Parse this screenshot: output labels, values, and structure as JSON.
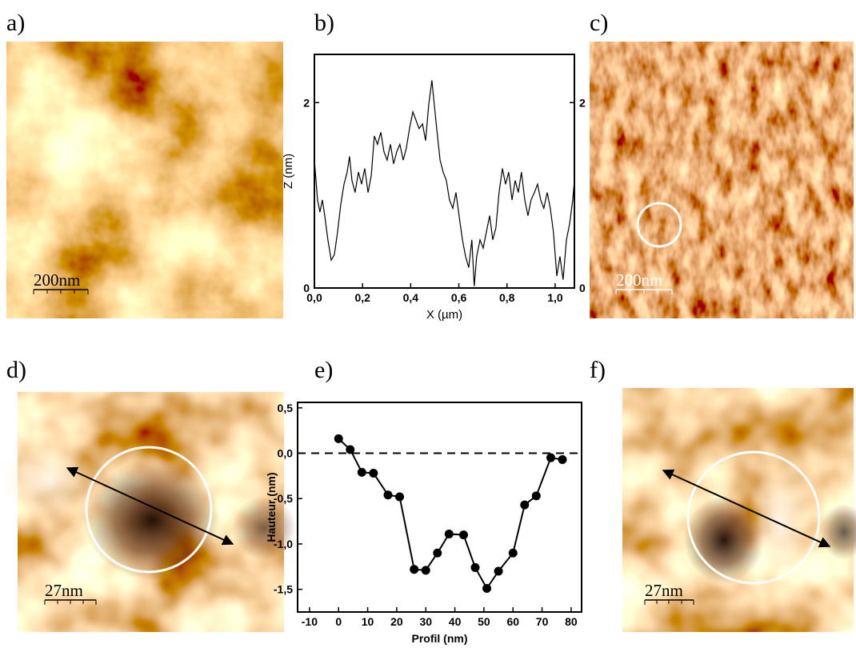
{
  "panels": [
    "a)",
    "b)",
    "c)",
    "d)",
    "e)",
    "f)"
  ],
  "scale_bars": {
    "a": "200nm",
    "c": "200nm",
    "d": "27nm",
    "f": "27nm"
  },
  "chart_data": [
    {
      "type": "line",
      "x_label": "X (µm)",
      "y_label": "Z (nm)",
      "xlim": [
        0,
        1.08
      ],
      "ylim": [
        0,
        2.52
      ],
      "y2lim": [
        0,
        2.52
      ],
      "xticks": [
        {
          "value": 0,
          "label": "0,0"
        },
        {
          "value": 0.2,
          "label": "0,2"
        },
        {
          "value": 0.4,
          "label": "0,4"
        },
        {
          "value": 0.6,
          "label": "0,6"
        },
        {
          "value": 0.8,
          "label": "0,8"
        },
        {
          "value": 1.0,
          "label": "1,0"
        }
      ],
      "yticks": [
        0,
        2
      ],
      "y2ticks": [
        0,
        2
      ],
      "x": [
        0,
        0.013,
        0.023,
        0.033,
        0.043,
        0.056,
        0.07,
        0.083,
        0.096,
        0.11,
        0.123,
        0.136,
        0.146,
        0.156,
        0.169,
        0.183,
        0.196,
        0.209,
        0.223,
        0.236,
        0.249,
        0.262,
        0.276,
        0.289,
        0.302,
        0.316,
        0.329,
        0.342,
        0.355,
        0.369,
        0.382,
        0.395,
        0.409,
        0.422,
        0.435,
        0.449,
        0.462,
        0.475,
        0.488,
        0.498,
        0.508,
        0.522,
        0.535,
        0.548,
        0.561,
        0.575,
        0.588,
        0.601,
        0.615,
        0.628,
        0.641,
        0.654,
        0.664,
        0.674,
        0.688,
        0.701,
        0.714,
        0.728,
        0.741,
        0.754,
        0.767,
        0.781,
        0.794,
        0.807,
        0.821,
        0.834,
        0.847,
        0.86,
        0.874,
        0.887,
        0.9,
        0.914,
        0.927,
        0.94,
        0.953,
        0.967,
        0.98,
        0.993,
        1.007,
        1.02,
        1.033,
        1.047,
        1.06,
        1.073,
        1.08
      ],
      "series": [
        {
          "color": "#000000",
          "values": [
            1.38,
            0.95,
            0.82,
            0.95,
            0.78,
            0.52,
            0.3,
            0.36,
            0.6,
            0.91,
            1.12,
            1.25,
            1.42,
            1.16,
            1.03,
            1.25,
            1.12,
            1.29,
            1.03,
            1.21,
            1.64,
            1.55,
            1.68,
            1.47,
            1.38,
            1.55,
            1.34,
            1.47,
            1.55,
            1.38,
            1.51,
            1.72,
            1.9,
            1.81,
            1.72,
            1.77,
            1.59,
            1.98,
            2.24,
            1.98,
            1.72,
            1.38,
            1.25,
            1.16,
            0.95,
            0.86,
            1.03,
            0.78,
            0.52,
            0.34,
            0.22,
            0.52,
            0.02,
            0.34,
            0.52,
            0.43,
            0.6,
            0.78,
            0.52,
            0.65,
            1.03,
            1.29,
            1.12,
            1.25,
            0.95,
            1.16,
            1.03,
            1.25,
            0.95,
            0.78,
            0.95,
            1.03,
            1.12,
            0.95,
            0.86,
            1.03,
            0.86,
            0.6,
            0.13,
            0.34,
            0.09,
            0.52,
            0.69,
            0.95,
            1.16
          ]
        }
      ]
    },
    {
      "type": "line",
      "markers": true,
      "x_label": "Profil (nm)",
      "y_label": "Hauteur (nm)",
      "xlim": [
        -14.1,
        83.6
      ],
      "ylim": [
        -1.75,
        0.56
      ],
      "hline": 0,
      "xticks": [
        -10,
        0,
        10,
        20,
        30,
        40,
        50,
        60,
        70,
        80
      ],
      "yticks": [
        {
          "value": 0.5,
          "label": "0,5"
        },
        {
          "value": 0,
          "label": "0,0"
        },
        {
          "value": -0.5,
          "label": "-0,5"
        },
        {
          "value": -1,
          "label": "-1,0"
        },
        {
          "value": -1.5,
          "label": "-1,5"
        }
      ],
      "x": [
        0,
        4,
        8,
        12,
        17,
        21,
        26,
        30,
        34,
        38,
        43,
        47,
        51,
        55,
        60,
        64,
        68,
        73,
        77
      ],
      "series": [
        {
          "color": "#000000",
          "values": [
            0.16,
            0.04,
            -0.21,
            -0.22,
            -0.46,
            -0.48,
            -1.28,
            -1.29,
            -1.1,
            -0.89,
            -0.9,
            -1.26,
            -1.49,
            -1.3,
            -1.1,
            -0.57,
            -0.47,
            -0.05,
            -0.07
          ]
        }
      ]
    }
  ]
}
